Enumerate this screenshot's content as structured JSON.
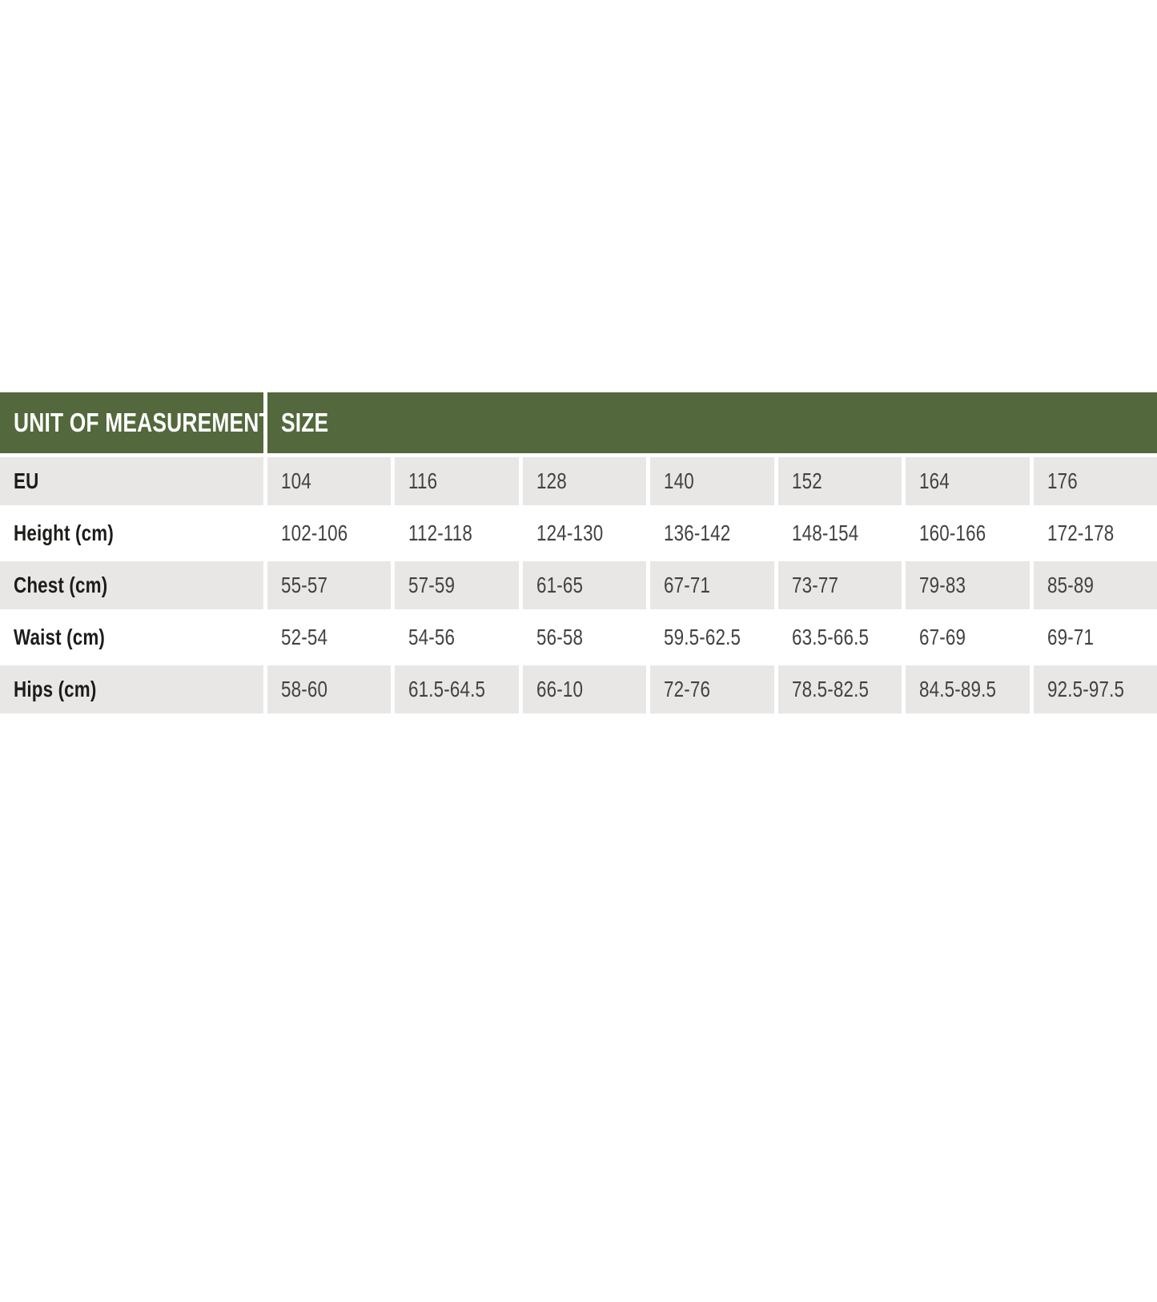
{
  "table": {
    "title": "size-chart",
    "colors": {
      "header_bg": "#53683C",
      "stripe_bg": "#E8E7E6",
      "header_text": "#FFFFFF",
      "label_text": "#1D1C1A",
      "value_text": "#434240"
    },
    "header": {
      "unit_col": "UNIT OF MEASUREMENT",
      "size_col": "SIZE"
    },
    "rows": [
      {
        "label": "EU",
        "values": [
          "104",
          "116",
          "128",
          "140",
          "152",
          "164",
          "176"
        ]
      },
      {
        "label": "Height (cm)",
        "values": [
          "102-106",
          "112-118",
          "124-130",
          "136-142",
          "148-154",
          "160-166",
          "172-178"
        ]
      },
      {
        "label": "Chest (cm)",
        "values": [
          "55-57",
          "57-59",
          "61-65",
          "67-71",
          "73-77",
          "79-83",
          "85-89"
        ]
      },
      {
        "label": "Waist (cm)",
        "values": [
          "52-54",
          "54-56",
          "56-58",
          "59.5-62.5",
          "63.5-66.5",
          "67-69",
          "69-71"
        ]
      },
      {
        "label": "Hips (cm)",
        "values": [
          "58-60",
          "61.5-64.5",
          "66-10",
          "72-76",
          "78.5-82.5",
          "84.5-89.5",
          "92.5-97.5"
        ]
      }
    ]
  }
}
